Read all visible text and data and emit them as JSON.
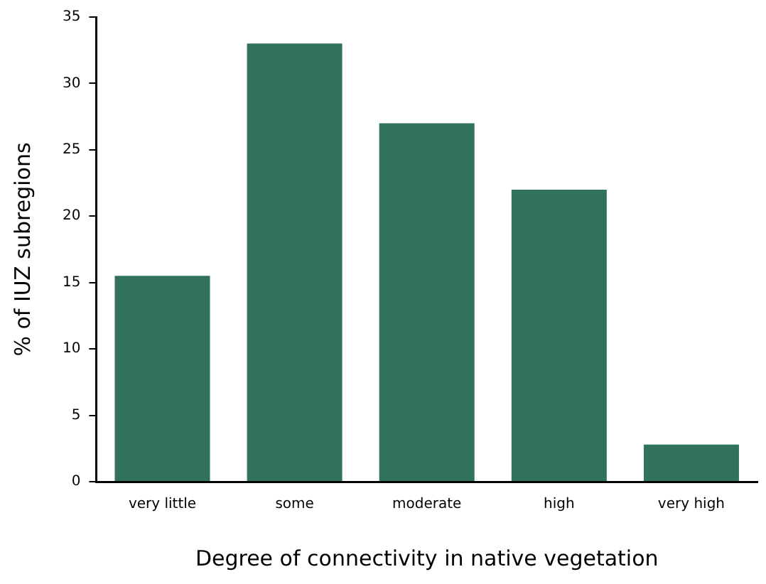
{
  "chart_data": {
    "type": "bar",
    "xlabel": "Degree of connectivity in native vegetation",
    "ylabel": "% of IUZ subregions",
    "categories": [
      "very little",
      "some",
      "moderate",
      "high",
      "very high"
    ],
    "values": [
      15.5,
      33,
      27,
      22,
      2.8
    ],
    "color": "#31735a",
    "ylim": [
      0,
      35
    ],
    "yticks": [
      0,
      5,
      10,
      15,
      20,
      25,
      30,
      35
    ],
    "grid": false,
    "legend": false
  }
}
